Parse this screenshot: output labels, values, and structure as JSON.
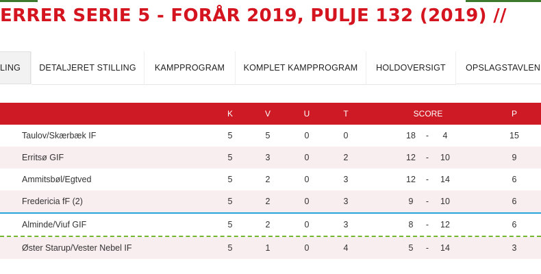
{
  "title": "ERRER SERIE 5 - FORÅR 2019, PULJE 132 (2019) //",
  "tabs": [
    {
      "label": "ILLING",
      "active": true
    },
    {
      "label": "DETALJERET STILLING",
      "active": false
    },
    {
      "label": "KAMPPROGRAM",
      "active": false
    },
    {
      "label": "KOMPLET KAMPPROGRAM",
      "active": false
    },
    {
      "label": "HOLDOVERSIGT",
      "active": false
    },
    {
      "label": "OPSLAGSTAVLEN",
      "active": false
    }
  ],
  "table": {
    "headers": {
      "k": "K",
      "v": "V",
      "u": "U",
      "t": "T",
      "score": "SCORE",
      "p": "P"
    },
    "rows": [
      {
        "team": "Taulov/Skærbæk IF",
        "k": "5",
        "v": "5",
        "u": "0",
        "t": "0",
        "scored": "18",
        "dash": "-",
        "conceded": "4",
        "p": "15"
      },
      {
        "team": "Erritsø GIF",
        "k": "5",
        "v": "3",
        "u": "0",
        "t": "2",
        "scored": "12",
        "dash": "-",
        "conceded": "10",
        "p": "9"
      },
      {
        "team": "Ammitsbøl/Egtved",
        "k": "5",
        "v": "2",
        "u": "0",
        "t": "3",
        "scored": "12",
        "dash": "-",
        "conceded": "14",
        "p": "6"
      },
      {
        "team": "Fredericia fF (2)",
        "k": "5",
        "v": "2",
        "u": "0",
        "t": "3",
        "scored": "9",
        "dash": "-",
        "conceded": "10",
        "p": "6"
      },
      {
        "team": "Alminde/Viuf GIF",
        "k": "5",
        "v": "2",
        "u": "0",
        "t": "3",
        "scored": "8",
        "dash": "-",
        "conceded": "12",
        "p": "6"
      },
      {
        "team": "Øster Starup/Vester Nebel IF",
        "k": "5",
        "v": "1",
        "u": "0",
        "t": "4",
        "scored": "5",
        "dash": "-",
        "conceded": "14",
        "p": "3"
      }
    ]
  },
  "colors": {
    "brand_red": "#d4141e",
    "header_red": "#cd1a24",
    "alt_row": "#f8edef",
    "promotion_line": "#26a3d8",
    "relegation_line": "#72b52f"
  }
}
